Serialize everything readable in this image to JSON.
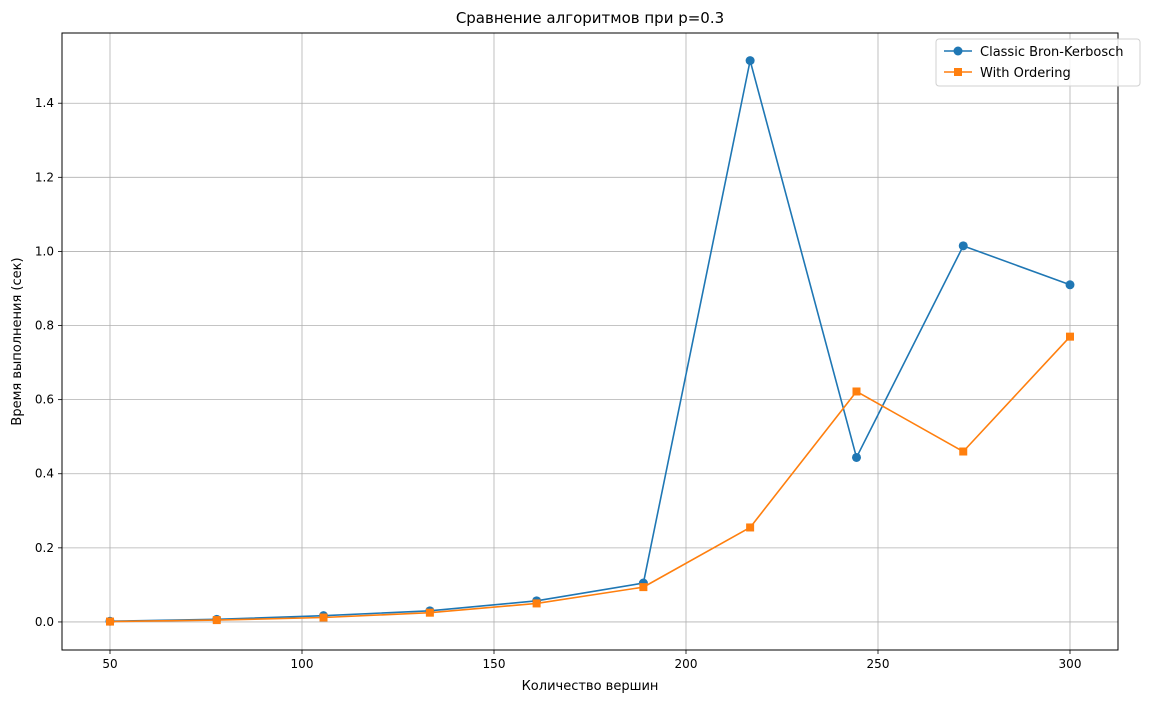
{
  "chart_data": {
    "type": "line",
    "title": "Сравнение алгоритмов при p=0.3",
    "xlabel": "Количество вершин",
    "ylabel": "Время выполнения (сек)",
    "x": [
      50,
      77.8,
      105.6,
      133.3,
      161.1,
      188.9,
      216.7,
      244.4,
      272.2,
      300
    ],
    "xlim": [
      37.5,
      312.5
    ],
    "ylim": [
      -0.0757,
      1.5895
    ],
    "xticks": [
      50,
      100,
      150,
      200,
      250,
      300
    ],
    "xtick_labels": [
      "50",
      "100",
      "150",
      "200",
      "250",
      "300"
    ],
    "yticks": [
      0.0,
      0.2,
      0.4,
      0.6,
      0.8,
      1.0,
      1.2,
      1.4
    ],
    "ytick_labels": [
      "0.0",
      "0.2",
      "0.4",
      "0.6",
      "0.8",
      "1.0",
      "1.2",
      "1.4"
    ],
    "grid": true,
    "legend_position": "top-right",
    "series": [
      {
        "name": "Classic Bron-Kerbosch",
        "color": "#1f77b4",
        "marker": "circle",
        "values": [
          0.002,
          0.007,
          0.017,
          0.03,
          0.057,
          0.105,
          1.515,
          0.444,
          1.015,
          0.91
        ]
      },
      {
        "name": "With Ordering",
        "color": "#ff7f0e",
        "marker": "square",
        "values": [
          0.001,
          0.005,
          0.012,
          0.025,
          0.05,
          0.094,
          0.255,
          0.622,
          0.46,
          0.77
        ]
      }
    ]
  }
}
